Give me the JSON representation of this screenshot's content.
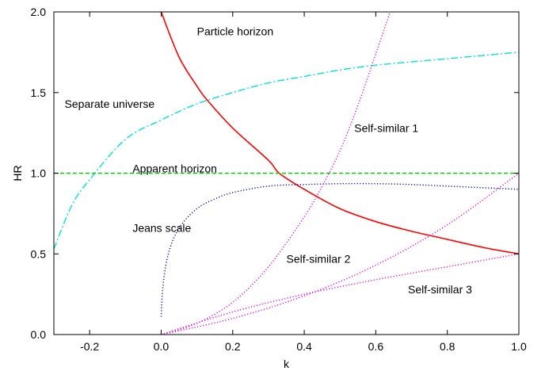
{
  "chart_data": {
    "type": "line",
    "title": "",
    "xlabel": "k",
    "ylabel": "HR",
    "xlim": [
      -0.3,
      1.0
    ],
    "ylim": [
      0.0,
      2.0
    ],
    "xticks": [
      -0.2,
      0.0,
      0.2,
      0.4,
      0.6,
      0.8,
      1.0
    ],
    "xtick_labels": [
      "-0.2",
      "0.0",
      "0.2",
      "0.4",
      "0.6",
      "0.8",
      "1.0"
    ],
    "yticks": [
      0.0,
      0.5,
      1.0,
      1.5,
      2.0
    ],
    "ytick_labels": [
      "0.0",
      "0.5",
      "1.0",
      "1.5",
      "2.0"
    ],
    "grid": false,
    "legend": "none",
    "series": [
      {
        "name": "Particle horizon",
        "color": "#ff0000",
        "style": "solid",
        "x": [
          0.0,
          0.05,
          0.1,
          0.13,
          0.2,
          0.3,
          0.33,
          0.4,
          0.5,
          0.6,
          0.7,
          0.78,
          0.9,
          1.0
        ],
        "y": [
          2.0,
          1.72,
          1.54,
          1.45,
          1.28,
          1.08,
          1.0,
          0.9,
          0.78,
          0.7,
          0.64,
          0.6,
          0.54,
          0.5
        ]
      },
      {
        "name": "Separate universe",
        "color": "#00e0e0",
        "style": "dashdot",
        "x": [
          -0.3,
          -0.25,
          -0.2,
          -0.1,
          0.0,
          0.1,
          0.2,
          0.3,
          0.4,
          0.5,
          0.6,
          0.7,
          0.8,
          0.9,
          1.0
        ],
        "y": [
          0.53,
          0.8,
          0.96,
          1.21,
          1.33,
          1.43,
          1.5,
          1.56,
          1.6,
          1.64,
          1.67,
          1.69,
          1.71,
          1.73,
          1.75
        ]
      },
      {
        "name": "Apparent horizon",
        "color": "#00cc00",
        "style": "dashed",
        "x": [
          -0.3,
          1.0
        ],
        "y": [
          1.0,
          1.0
        ]
      },
      {
        "name": "Jeans scale",
        "color": "#0000cc",
        "style": "dotted",
        "x": [
          0.0,
          0.005,
          0.02,
          0.05,
          0.1,
          0.15,
          0.2,
          0.3,
          0.4,
          0.5,
          0.6,
          0.7,
          0.8,
          0.9,
          1.0
        ],
        "y": [
          0.11,
          0.3,
          0.5,
          0.66,
          0.78,
          0.84,
          0.88,
          0.92,
          0.93,
          0.935,
          0.935,
          0.93,
          0.92,
          0.91,
          0.9
        ]
      },
      {
        "name": "Self-similar 1",
        "color": "#e600e6",
        "style": "dotted",
        "x": [
          0.0,
          0.1,
          0.2,
          0.3,
          0.4,
          0.45,
          0.5,
          0.55,
          0.6,
          0.64
        ],
        "y": [
          0.0,
          0.07,
          0.2,
          0.42,
          0.73,
          0.92,
          1.14,
          1.42,
          1.74,
          2.0
        ]
      },
      {
        "name": "Self-similar 2",
        "color": "#e600e6",
        "style": "dotted",
        "x": [
          0.0,
          0.2,
          0.4,
          0.6,
          0.8,
          1.0
        ],
        "y": [
          0.0,
          0.1,
          0.24,
          0.43,
          0.68,
          1.0
        ]
      },
      {
        "name": "Self-similar 3",
        "color": "#e600e6",
        "style": "dotted",
        "x": [
          0.0,
          0.2,
          0.4,
          0.6,
          0.8,
          1.0
        ],
        "y": [
          0.0,
          0.14,
          0.25,
          0.34,
          0.42,
          0.5
        ]
      }
    ],
    "annotations": [
      {
        "text": "Particle horizon",
        "x": 0.1,
        "y": 1.88
      },
      {
        "text": "Separate universe",
        "x": -0.27,
        "y": 1.43
      },
      {
        "text": "Self-similar 1",
        "x": 0.54,
        "y": 1.28
      },
      {
        "text": "Apparent horizon",
        "x": -0.08,
        "y": 1.03
      },
      {
        "text": "Jeans scale",
        "x": -0.08,
        "y": 0.66
      },
      {
        "text": "Self-similar 2",
        "x": 0.35,
        "y": 0.47
      },
      {
        "text": "Self-similar 3",
        "x": 0.69,
        "y": 0.28
      }
    ]
  }
}
